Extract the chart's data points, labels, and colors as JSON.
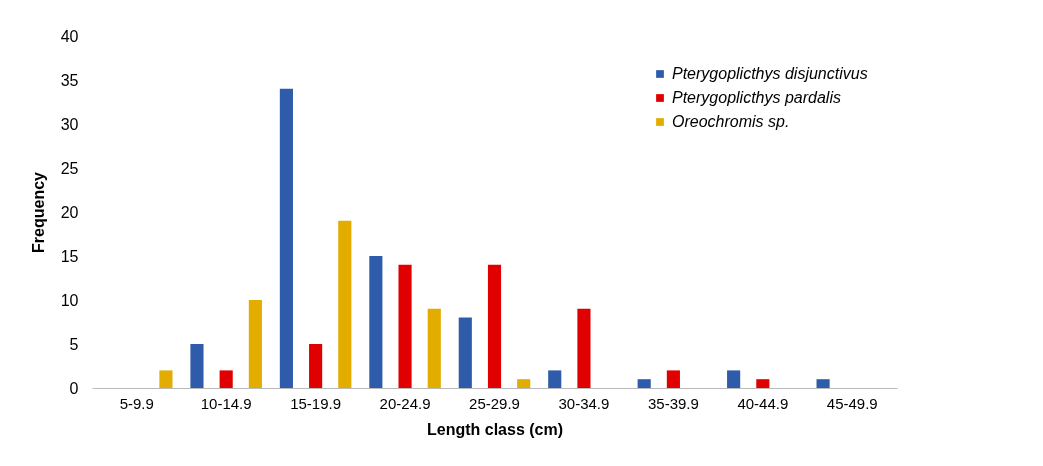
{
  "chart_data": {
    "type": "bar",
    "xlabel": "Length class (cm)",
    "ylabel": "Frequency",
    "categories": [
      "5-9.9",
      "10-14.9",
      "15-19.9",
      "20-24.9",
      "25-29.9",
      "30-34.9",
      "35-39.9",
      "40-44.9",
      "45-49.9"
    ],
    "series": [
      {
        "name": "Pterygoplicthys disjunctivus",
        "color": "#2e5caa",
        "values": [
          0,
          5,
          34,
          15,
          8,
          2,
          1,
          2,
          1
        ]
      },
      {
        "name": "Pterygoplicthys pardalis",
        "color": "#e00000",
        "values": [
          0,
          2,
          5,
          14,
          14,
          9,
          2,
          1,
          0
        ]
      },
      {
        "name": "Oreochromis sp.",
        "color": "#e3ad00",
        "values": [
          2,
          10,
          19,
          9,
          1,
          0,
          0,
          0,
          0
        ]
      }
    ],
    "ylim": [
      0,
      40
    ],
    "yticks": [
      0,
      5,
      10,
      15,
      20,
      25,
      30,
      35,
      40
    ],
    "grid": false,
    "legend": "top right"
  }
}
